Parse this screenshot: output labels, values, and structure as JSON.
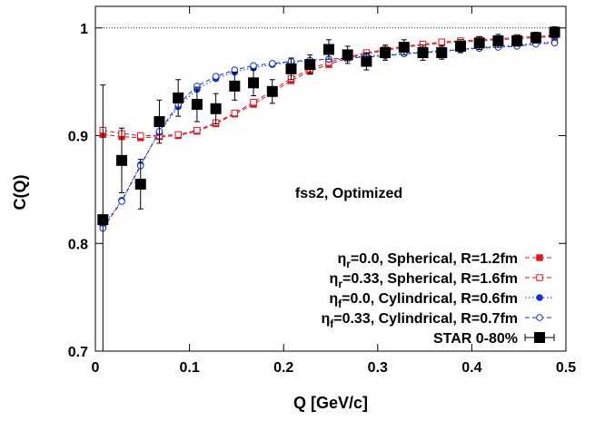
{
  "chart_data": {
    "type": "scatter",
    "title": "",
    "annotation": "fss2, Optimized",
    "xlabel": "Q [GeV/c]",
    "ylabel": "C(Q)",
    "xlim": [
      0,
      0.5
    ],
    "ylim": [
      0.7,
      1.02
    ],
    "x_ticks": [
      "0",
      "0.1",
      "0.2",
      "0.3",
      "0.4",
      "0.5"
    ],
    "y_ticks": [
      "0.7",
      "0.8",
      "0.9",
      "1"
    ],
    "reference_line": {
      "y": 1.0,
      "style": "dotted"
    },
    "grid": false,
    "legend_position": "bottom-right",
    "x": [
      0.008,
      0.028,
      0.048,
      0.068,
      0.088,
      0.108,
      0.128,
      0.148,
      0.168,
      0.188,
      0.208,
      0.228,
      0.248,
      0.268,
      0.288,
      0.308,
      0.328,
      0.348,
      0.368,
      0.388,
      0.408,
      0.428,
      0.448,
      0.468,
      0.488
    ],
    "series": [
      {
        "name_main": "η",
        "name_sub": "r",
        "name_rest": "=0.0, Spherical, R=1.2fm",
        "color": "#e8141c",
        "marker": "square-filled",
        "line": "dashed",
        "y": [
          0.901,
          0.899,
          0.898,
          0.899,
          0.9,
          0.904,
          0.911,
          0.92,
          0.929,
          0.94,
          0.951,
          0.96,
          0.966,
          0.972,
          0.976,
          0.979,
          0.982,
          0.984,
          0.986,
          0.987,
          0.988,
          0.989,
          0.99,
          0.991,
          0.992
        ]
      },
      {
        "name_main": "η",
        "name_sub": "r",
        "name_rest": "=0.33, Spherical, R=1.6fm",
        "color": "#e8141c",
        "marker": "square-open",
        "line": "dashed",
        "y": [
          0.905,
          0.902,
          0.9,
          0.9,
          0.901,
          0.905,
          0.912,
          0.921,
          0.931,
          0.942,
          0.953,
          0.962,
          0.968,
          0.973,
          0.977,
          0.98,
          0.983,
          0.985,
          0.987,
          0.988,
          0.989,
          0.99,
          0.991,
          0.992,
          0.993
        ]
      },
      {
        "name_main": "η",
        "name_sub": "f",
        "name_rest": "=0.0, Cylindrical, R=0.6fm",
        "color": "#1030e0",
        "marker": "circle-filled",
        "line": "dotted",
        "y": [
          0.816,
          0.84,
          0.873,
          0.903,
          0.927,
          0.943,
          0.953,
          0.959,
          0.963,
          0.966,
          0.968,
          0.97,
          0.971,
          0.972,
          0.974,
          0.975,
          0.976,
          0.978,
          0.979,
          0.98,
          0.982,
          0.983,
          0.984,
          0.986,
          0.987
        ]
      },
      {
        "name_main": "η",
        "name_sub": "f",
        "name_rest": "=0.33, Cylindrical, R=0.7fm",
        "color": "#1030e0",
        "marker": "circle-open",
        "line": "dashed",
        "y": [
          0.814,
          0.839,
          0.872,
          0.904,
          0.929,
          0.946,
          0.955,
          0.961,
          0.965,
          0.967,
          0.969,
          0.97,
          0.971,
          0.972,
          0.973,
          0.974,
          0.976,
          0.977,
          0.978,
          0.98,
          0.981,
          0.982,
          0.983,
          0.985,
          0.986
        ]
      },
      {
        "name_main": "STAR 0-80%",
        "name_sub": "",
        "name_rest": "",
        "color": "#000000",
        "marker": "square-filled-large",
        "line": "none",
        "y": [
          0.822,
          0.877,
          0.855,
          0.913,
          0.935,
          0.929,
          0.925,
          0.946,
          0.949,
          0.941,
          0.962,
          0.966,
          0.98,
          0.975,
          0.969,
          0.977,
          0.982,
          0.977,
          0.977,
          0.983,
          0.986,
          0.988,
          0.988,
          0.991,
          0.996
        ],
        "error": [
          0.125,
          0.03,
          0.023,
          0.02,
          0.017,
          0.016,
          0.014,
          0.013,
          0.012,
          0.011,
          0.01,
          0.009,
          0.009,
          0.008,
          0.008,
          0.007,
          0.007,
          0.007,
          0.006,
          0.006,
          0.006,
          0.006,
          0.005,
          0.005,
          0.005
        ]
      }
    ]
  }
}
